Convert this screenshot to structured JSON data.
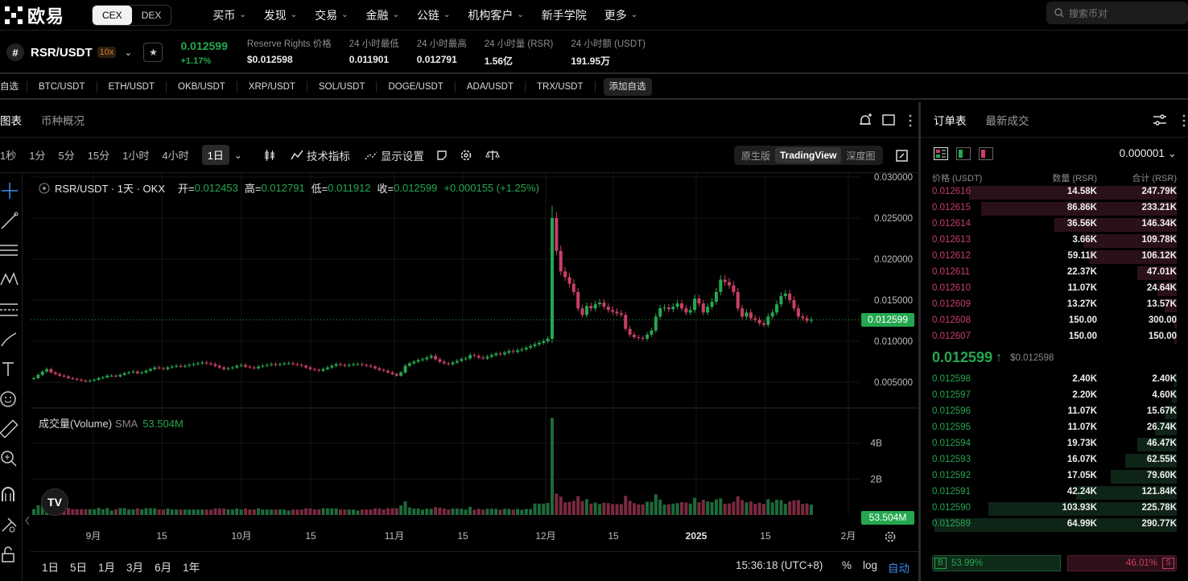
{
  "header": {
    "brand": "欧易",
    "mode_tabs": [
      "CEX",
      "DEX"
    ],
    "nav": [
      {
        "label": "买币",
        "dropdown": true
      },
      {
        "label": "发现",
        "dropdown": true
      },
      {
        "label": "交易",
        "dropdown": true
      },
      {
        "label": "金融",
        "dropdown": true
      },
      {
        "label": "公链",
        "dropdown": true
      },
      {
        "label": "机构客户",
        "dropdown": true
      },
      {
        "label": "新手学院",
        "dropdown": false
      },
      {
        "label": "更多",
        "dropdown": true
      }
    ],
    "search_placeholder": "搜索币对"
  },
  "ticker": {
    "coin_symbol": "#",
    "pair": "RSR/USDT",
    "leverage": "10x",
    "last_price": "0.012599",
    "change_pct": "+1.17%",
    "stats": [
      {
        "label": "Reserve Rights 价格",
        "value": "$0.012598"
      },
      {
        "label": "24 小时最低",
        "value": "0.011901"
      },
      {
        "label": "24 小时最高",
        "value": "0.012791"
      },
      {
        "label": "24 小时量 (RSR)",
        "value": "1.56亿"
      },
      {
        "label": "24 小时额 (USDT)",
        "value": "191.95万"
      }
    ]
  },
  "favorites": {
    "label": "自选",
    "pairs": [
      "BTC/USDT",
      "ETH/USDT",
      "OKB/USDT",
      "XRP/USDT",
      "SOL/USDT",
      "DOGE/USDT",
      "ADA/USDT",
      "TRX/USDT"
    ],
    "add_label": "添加自选"
  },
  "chart_panel": {
    "tabs": [
      "图表",
      "币种概况"
    ],
    "intervals": [
      "1秒",
      "1分",
      "5分",
      "15分",
      "1小时",
      "4小时",
      "1日"
    ],
    "active_interval": "1日",
    "tools": [
      "技术指标",
      "显示设置"
    ],
    "view_modes": [
      "原生版",
      "TradingView",
      "深度图"
    ],
    "active_view": "TradingView",
    "legend": {
      "symbol": "RSR/USDT · 1天 · OKX",
      "open_label": "开=",
      "open": "0.012453",
      "high_label": "高=",
      "high": "0.012791",
      "low_label": "低=",
      "low": "0.011912",
      "close_label": "收=",
      "close": "0.012599",
      "change": "+0.000155 (+1.25%)"
    },
    "volume_legend": {
      "label": "成交量(Volume)",
      "sma_label": "SMA",
      "sma_value": "53.504M"
    },
    "price_marker": "0.012599",
    "volume_marker": "53.504M",
    "ranges": [
      "1日",
      "5日",
      "1月",
      "3月",
      "6月",
      "1年"
    ],
    "clock": "15:36:18 (UTC+8)",
    "scale_buttons": [
      "%",
      "log",
      "自动"
    ]
  },
  "chart_data": {
    "type": "candlestick",
    "price_axis_ticks": [
      "0.030000",
      "0.025000",
      "0.020000",
      "0.015000",
      "0.010000",
      "0.005000"
    ],
    "price_axis_values": [
      0.03,
      0.025,
      0.02,
      0.015,
      0.01,
      0.005
    ],
    "volume_axis_ticks": [
      "4B",
      "2B"
    ],
    "volume_axis_values": [
      4000000000,
      2000000000
    ],
    "x_ticks": [
      "9月",
      "15",
      "10月",
      "15",
      "11月",
      "15",
      "12月",
      "15",
      "2025",
      "15",
      "2月"
    ],
    "close_series_approx": [
      0.0055,
      0.0059,
      0.0063,
      0.0066,
      0.0062,
      0.006,
      0.0058,
      0.0057,
      0.0055,
      0.0054,
      0.0053,
      0.0052,
      0.0051,
      0.0052,
      0.0053,
      0.0055,
      0.0056,
      0.0058,
      0.0058,
      0.0057,
      0.0059,
      0.0061,
      0.0062,
      0.0063,
      0.0061,
      0.0062,
      0.0064,
      0.0066,
      0.0068,
      0.0067,
      0.0066,
      0.0068,
      0.0069,
      0.007,
      0.0069,
      0.007,
      0.0071,
      0.0072,
      0.0073,
      0.0074,
      0.0073,
      0.0072,
      0.007,
      0.0068,
      0.0066,
      0.0067,
      0.0068,
      0.007,
      0.0071,
      0.0069,
      0.0068,
      0.0067,
      0.0069,
      0.007,
      0.0071,
      0.0072,
      0.0071,
      0.0072,
      0.0073,
      0.0073,
      0.0072,
      0.0071,
      0.007,
      0.0068,
      0.0066,
      0.0065,
      0.0064,
      0.0066,
      0.0068,
      0.007,
      0.0072,
      0.0071,
      0.007,
      0.0071,
      0.0072,
      0.0072,
      0.0071,
      0.007,
      0.0069,
      0.0067,
      0.0065,
      0.0064,
      0.0062,
      0.006,
      0.0058,
      0.0062,
      0.007,
      0.0073,
      0.0075,
      0.0077,
      0.0078,
      0.008,
      0.0082,
      0.0078,
      0.0075,
      0.0073,
      0.0072,
      0.0074,
      0.0076,
      0.0078,
      0.0079,
      0.0083,
      0.0082,
      0.008,
      0.0079,
      0.0081,
      0.0083,
      0.0085,
      0.0084,
      0.0086,
      0.0088,
      0.0087,
      0.0089,
      0.009,
      0.0092,
      0.0094,
      0.0096,
      0.0098,
      0.01,
      0.0103,
      0.025,
      0.021,
      0.0185,
      0.0178,
      0.017,
      0.016,
      0.014,
      0.0132,
      0.0143,
      0.014,
      0.0145,
      0.0147,
      0.0142,
      0.0138,
      0.0136,
      0.0134,
      0.0132,
      0.0115,
      0.0108,
      0.0105,
      0.0104,
      0.0103,
      0.0108,
      0.0113,
      0.013,
      0.014,
      0.0141,
      0.0139,
      0.0142,
      0.0146,
      0.014,
      0.0135,
      0.0138,
      0.0152,
      0.0146,
      0.0135,
      0.0142,
      0.0148,
      0.016,
      0.0175,
      0.0172,
      0.0168,
      0.016,
      0.014,
      0.013,
      0.0135,
      0.0128,
      0.0126,
      0.0122,
      0.012,
      0.013,
      0.0135,
      0.0145,
      0.0155,
      0.0158,
      0.015,
      0.014,
      0.013,
      0.0128,
      0.0125,
      0.0126
    ],
    "last_price": 0.012599
  },
  "orderbook": {
    "tabs": [
      "订单表",
      "最新成交"
    ],
    "precision": "0.000001",
    "columns": [
      "价格 (USDT)",
      "数量 (RSR)",
      "合计 (RSR)"
    ],
    "asks": [
      {
        "price": "0.012616",
        "qty": "14.58K",
        "total": "247.79K",
        "depth": 0.85
      },
      {
        "price": "0.012615",
        "qty": "86.86K",
        "total": "233.21K",
        "depth": 0.8
      },
      {
        "price": "0.012614",
        "qty": "36.56K",
        "total": "146.34K",
        "depth": 0.5
      },
      {
        "price": "0.012613",
        "qty": "3.66K",
        "total": "109.78K",
        "depth": 0.38
      },
      {
        "price": "0.012612",
        "qty": "59.11K",
        "total": "106.12K",
        "depth": 0.36
      },
      {
        "price": "0.012611",
        "qty": "22.37K",
        "total": "47.01K",
        "depth": 0.16
      },
      {
        "price": "0.012610",
        "qty": "11.07K",
        "total": "24.64K",
        "depth": 0.08
      },
      {
        "price": "0.012609",
        "qty": "13.27K",
        "total": "13.57K",
        "depth": 0.05
      },
      {
        "price": "0.012608",
        "qty": "150.00",
        "total": "300.00",
        "depth": 0.01
      },
      {
        "price": "0.012607",
        "qty": "150.00",
        "total": "150.00",
        "depth": 0.01
      }
    ],
    "mid_price": "0.012599",
    "mid_arrow": "↑",
    "mid_usd": "$0.012598",
    "bids": [
      {
        "price": "0.012598",
        "qty": "2.40K",
        "total": "2.40K",
        "depth": 0.01
      },
      {
        "price": "0.012597",
        "qty": "2.20K",
        "total": "4.60K",
        "depth": 0.02
      },
      {
        "price": "0.012596",
        "qty": "11.07K",
        "total": "15.67K",
        "depth": 0.05
      },
      {
        "price": "0.012595",
        "qty": "11.07K",
        "total": "26.74K",
        "depth": 0.09
      },
      {
        "price": "0.012594",
        "qty": "19.73K",
        "total": "46.47K",
        "depth": 0.16
      },
      {
        "price": "0.012593",
        "qty": "16.07K",
        "total": "62.55K",
        "depth": 0.21
      },
      {
        "price": "0.012592",
        "qty": "17.05K",
        "total": "79.60K",
        "depth": 0.27
      },
      {
        "price": "0.012591",
        "qty": "42.24K",
        "total": "121.84K",
        "depth": 0.41
      },
      {
        "price": "0.012590",
        "qty": "103.93K",
        "total": "225.78K",
        "depth": 0.77
      },
      {
        "price": "0.012589",
        "qty": "64.99K",
        "total": "290.77K",
        "depth": 0.99
      }
    ],
    "buy_label": "B",
    "buy_ratio": "53.99%",
    "buy_ratio_value": 53.99,
    "sell_label": "S",
    "sell_ratio": "46.01%",
    "sell_ratio_value": 46.01
  },
  "colors": {
    "up": "#25a750",
    "down": "#ca3f64",
    "accent": "#3d8cf0"
  }
}
